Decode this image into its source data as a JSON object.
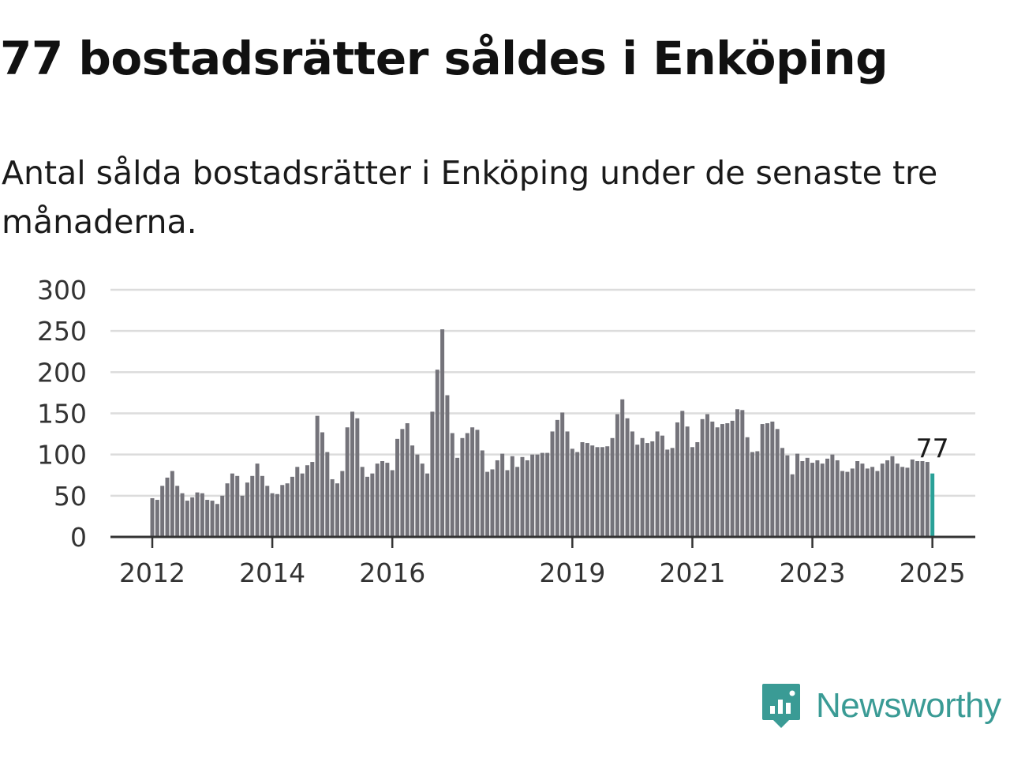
{
  "title": "77 bostadsrätter såldes i Enköping",
  "subtitle": "Antal sålda bostadsrätter i Enköping under de senaste tre månaderna.",
  "brand": {
    "name": "Newsworthy",
    "logo_icon": "newsworthy-bar-chart-logo-icon",
    "color": "#3a9b95"
  },
  "colors": {
    "bar": "#74737a",
    "highlight": "#2aa198",
    "grid": "#dcdcdc",
    "axis": "#333333",
    "text": "#333333"
  },
  "chart_data": {
    "type": "bar",
    "title": "77 bostadsrätter såldes i Enköping",
    "xlabel": "",
    "ylabel": "",
    "ylim": [
      0,
      300
    ],
    "yticks": [
      "0",
      "50",
      "100",
      "150",
      "200",
      "250",
      "300"
    ],
    "xticks": [
      {
        "label": "2012",
        "value": "2012-01"
      },
      {
        "label": "2014",
        "value": "2014-01"
      },
      {
        "label": "2016",
        "value": "2016-01"
      },
      {
        "label": "2019",
        "value": "2019-01"
      },
      {
        "label": "2021",
        "value": "2021-01"
      },
      {
        "label": "2023",
        "value": "2023-01"
      },
      {
        "label": "2025",
        "value": "2025-01"
      }
    ],
    "grid": true,
    "highlight_label": "77",
    "categories": [
      "2012-01",
      "2012-02",
      "2012-03",
      "2012-04",
      "2012-05",
      "2012-06",
      "2012-07",
      "2012-08",
      "2012-09",
      "2012-10",
      "2012-11",
      "2012-12",
      "2013-01",
      "2013-02",
      "2013-03",
      "2013-04",
      "2013-05",
      "2013-06",
      "2013-07",
      "2013-08",
      "2013-09",
      "2013-10",
      "2013-11",
      "2013-12",
      "2014-01",
      "2014-02",
      "2014-03",
      "2014-04",
      "2014-05",
      "2014-06",
      "2014-07",
      "2014-08",
      "2014-09",
      "2014-10",
      "2014-11",
      "2014-12",
      "2015-01",
      "2015-02",
      "2015-03",
      "2015-04",
      "2015-05",
      "2015-06",
      "2015-07",
      "2015-08",
      "2015-09",
      "2015-10",
      "2015-11",
      "2015-12",
      "2016-01",
      "2016-02",
      "2016-03",
      "2016-04",
      "2016-05",
      "2016-06",
      "2016-07",
      "2016-08",
      "2016-09",
      "2016-10",
      "2016-11",
      "2016-12",
      "2017-01",
      "2017-02",
      "2017-03",
      "2017-04",
      "2017-05",
      "2017-06",
      "2017-07",
      "2017-08",
      "2017-09",
      "2017-10",
      "2017-11",
      "2017-12",
      "2018-01",
      "2018-02",
      "2018-03",
      "2018-04",
      "2018-05",
      "2018-06",
      "2018-07",
      "2018-08",
      "2018-09",
      "2018-10",
      "2018-11",
      "2018-12",
      "2019-01",
      "2019-02",
      "2019-03",
      "2019-04",
      "2019-05",
      "2019-06",
      "2019-07",
      "2019-08",
      "2019-09",
      "2019-10",
      "2019-11",
      "2019-12",
      "2020-01",
      "2020-02",
      "2020-03",
      "2020-04",
      "2020-05",
      "2020-06",
      "2020-07",
      "2020-08",
      "2020-09",
      "2020-10",
      "2020-11",
      "2020-12",
      "2021-01",
      "2021-02",
      "2021-03",
      "2021-04",
      "2021-05",
      "2021-06",
      "2021-07",
      "2021-08",
      "2021-09",
      "2021-10",
      "2021-11",
      "2021-12",
      "2022-01",
      "2022-02",
      "2022-03",
      "2022-04",
      "2022-05",
      "2022-06",
      "2022-07",
      "2022-08",
      "2022-09",
      "2022-10",
      "2022-11",
      "2022-12",
      "2023-01",
      "2023-02",
      "2023-03",
      "2023-04",
      "2023-05",
      "2023-06",
      "2023-07",
      "2023-08",
      "2023-09",
      "2023-10",
      "2023-11",
      "2023-12",
      "2024-01",
      "2024-02",
      "2024-03",
      "2024-04",
      "2024-05",
      "2024-06",
      "2024-07",
      "2024-08",
      "2024-09",
      "2024-10",
      "2024-11",
      "2024-12",
      "2025-01"
    ],
    "values": [
      47,
      45,
      62,
      72,
      80,
      62,
      53,
      44,
      48,
      54,
      53,
      45,
      44,
      40,
      50,
      65,
      77,
      74,
      50,
      66,
      74,
      89,
      74,
      62,
      53,
      52,
      63,
      65,
      73,
      85,
      77,
      87,
      91,
      147,
      127,
      103,
      70,
      65,
      80,
      133,
      152,
      144,
      85,
      73,
      77,
      89,
      92,
      90,
      81,
      119,
      131,
      138,
      111,
      100,
      89,
      77,
      152,
      203,
      252,
      172,
      126,
      96,
      120,
      126,
      133,
      130,
      105,
      79,
      82,
      93,
      101,
      81,
      98,
      85,
      97,
      93,
      100,
      100,
      102,
      102,
      128,
      142,
      151,
      128,
      107,
      103,
      115,
      114,
      111,
      109,
      109,
      110,
      120,
      149,
      167,
      144,
      128,
      112,
      120,
      114,
      116,
      128,
      123,
      106,
      108,
      139,
      153,
      134,
      109,
      115,
      143,
      149,
      140,
      133,
      137,
      138,
      141,
      155,
      154,
      121,
      103,
      104,
      137,
      138,
      140,
      131,
      108,
      99,
      76,
      101,
      92,
      96,
      90,
      93,
      89,
      95,
      100,
      93,
      80,
      79,
      83,
      92,
      89,
      83,
      85,
      80,
      89,
      93,
      98,
      89,
      85,
      84,
      94,
      92,
      92,
      91,
      77
    ]
  }
}
